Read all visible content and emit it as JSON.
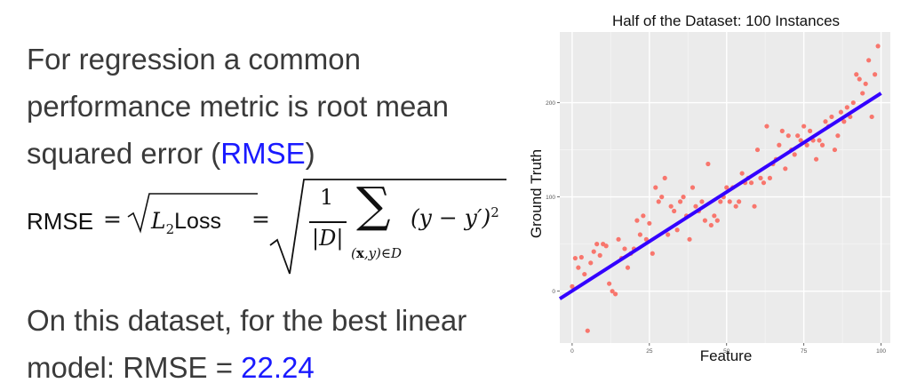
{
  "intro": {
    "text_before": "For regression a common performance metric is root mean squared error (",
    "link": "RMSE",
    "text_after": ")"
  },
  "formula": {
    "lhs": "RMSE",
    "eq": "=",
    "l2": "L",
    "l2_sub": "2",
    "loss": "Loss",
    "num": "1",
    "den": "|D|",
    "sum_symbol": "∑",
    "sum_sub_x": "x",
    "sum_sub_rest": ",y)∈D",
    "sum_sub_open": "(",
    "expr": "(y − y′)",
    "expr_sup": "2"
  },
  "result": {
    "text": "On this dataset, for the best linear model: RMSE = ",
    "value": "22.24"
  },
  "colors": {
    "link": "#1a1aff",
    "points": "#f8766d",
    "line": "#3300ff",
    "panel": "#ebebeb"
  },
  "chart_data": {
    "type": "scatter",
    "title": "Half of the Dataset: 100 Instances",
    "xlabel": "Feature",
    "ylabel": "Ground Truth",
    "xlim": [
      -4,
      103
    ],
    "ylim": [
      -55,
      275
    ],
    "x_ticks": [
      0,
      25,
      50,
      75,
      100
    ],
    "y_ticks": [
      0,
      100,
      200
    ],
    "grid": true,
    "legend": "none",
    "fit_line": {
      "x": [
        -4,
        100
      ],
      "y": [
        -8,
        210
      ]
    },
    "points": {
      "x": [
        0,
        1,
        2,
        3,
        4,
        5,
        6,
        7,
        8,
        9,
        10,
        11,
        12,
        13,
        14,
        15,
        16,
        17,
        18,
        19,
        20,
        21,
        22,
        23,
        24,
        25,
        26,
        27,
        28,
        29,
        30,
        31,
        32,
        33,
        34,
        35,
        36,
        37,
        38,
        39,
        40,
        41,
        42,
        43,
        44,
        45,
        46,
        47,
        48,
        49,
        50,
        51,
        52,
        53,
        54,
        55,
        56,
        57,
        58,
        59,
        60,
        61,
        62,
        63,
        64,
        65,
        66,
        67,
        68,
        69,
        70,
        71,
        72,
        73,
        74,
        75,
        76,
        77,
        78,
        79,
        80,
        81,
        82,
        83,
        84,
        85,
        86,
        87,
        88,
        89,
        90,
        91,
        92,
        93,
        94,
        95,
        96,
        97,
        98,
        99
      ],
      "y": [
        5,
        35,
        25,
        36,
        18,
        -42,
        30,
        42,
        50,
        38,
        50,
        48,
        8,
        0,
        -3,
        55,
        35,
        45,
        25,
        40,
        45,
        75,
        60,
        80,
        55,
        72,
        40,
        110,
        95,
        100,
        120,
        60,
        90,
        85,
        65,
        95,
        100,
        80,
        55,
        110,
        90,
        85,
        95,
        75,
        135,
        70,
        80,
        75,
        95,
        100,
        110,
        95,
        110,
        90,
        95,
        125,
        115,
        120,
        115,
        90,
        150,
        120,
        115,
        175,
        120,
        135,
        140,
        155,
        170,
        130,
        165,
        150,
        145,
        165,
        160,
        175,
        155,
        170,
        160,
        140,
        160,
        155,
        180,
        175,
        185,
        150,
        165,
        190,
        180,
        195,
        185,
        200,
        230,
        225,
        210,
        220,
        245,
        185,
        230,
        260
      ]
    }
  }
}
